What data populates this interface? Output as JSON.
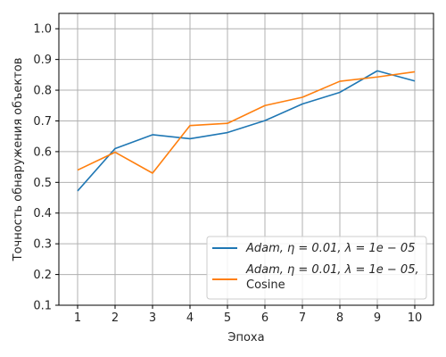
{
  "chart_data": {
    "type": "line",
    "xlabel": "Эпоха",
    "ylabel": "Точность обнаружения объектов",
    "x": [
      1,
      2,
      3,
      4,
      5,
      6,
      7,
      8,
      9,
      10
    ],
    "xlim": [
      0.5,
      10.5
    ],
    "ylim": [
      0.1,
      1.05
    ],
    "xticks": [
      "1",
      "2",
      "3",
      "4",
      "5",
      "6",
      "7",
      "8",
      "9",
      "10"
    ],
    "yticks": [
      "0.1",
      "0.2",
      "0.3",
      "0.4",
      "0.5",
      "0.6",
      "0.7",
      "0.8",
      "0.9",
      "1.0"
    ],
    "grid": true,
    "legend_position": "lower-right",
    "series": [
      {
        "name": "Adam, η = 0.01, λ = 1e − 05",
        "color": "#1f77b4",
        "values": [
          0.472,
          0.61,
          0.655,
          0.642,
          0.662,
          0.701,
          0.755,
          0.793,
          0.863,
          0.83
        ]
      },
      {
        "name": "Adam, η = 0.01, λ = 1e − 05, Cosine",
        "color": "#ff7f0e",
        "values": [
          0.54,
          0.598,
          0.53,
          0.685,
          0.692,
          0.75,
          0.777,
          0.829,
          0.843,
          0.86
        ]
      }
    ]
  }
}
